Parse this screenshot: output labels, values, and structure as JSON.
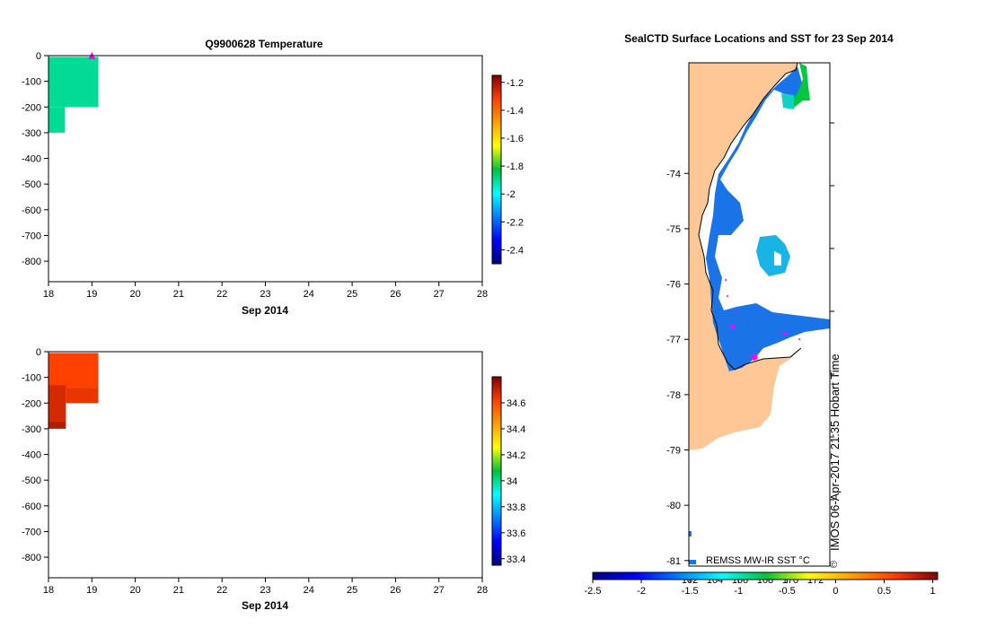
{
  "chart_data": [
    {
      "type": "heatmap",
      "title": "Q9900628  Temperature",
      "xlabel": "Sep 2014",
      "ylabel": "",
      "xlim": [
        18,
        28
      ],
      "ylim": [
        -880,
        0
      ],
      "x_ticks": [
        18,
        19,
        20,
        21,
        22,
        23,
        24,
        25,
        26,
        27,
        28
      ],
      "y_ticks": [
        0,
        -100,
        -200,
        -300,
        -400,
        -500,
        -600,
        -700,
        -800
      ],
      "colorbar": {
        "min": -2.5,
        "max": -1.15,
        "ticks": [
          -1.2,
          -1.4,
          -1.6,
          -1.8,
          -2,
          -2.2,
          -2.4
        ]
      },
      "cells": [
        {
          "x0": 18.0,
          "x1": 19.15,
          "y0": -200,
          "y1": -5,
          "value": -1.9
        },
        {
          "x0": 18.0,
          "x1": 18.38,
          "y0": -300,
          "y1": -200,
          "value": -1.9
        }
      ],
      "marker": {
        "x": 19.0,
        "y": 0,
        "color": "#ff00ff"
      }
    },
    {
      "type": "heatmap",
      "title": "",
      "xlabel": "Sep 2014",
      "ylabel": "",
      "xlim": [
        18,
        28
      ],
      "ylim": [
        -880,
        0
      ],
      "x_ticks": [
        18,
        19,
        20,
        21,
        22,
        23,
        24,
        25,
        26,
        27,
        28
      ],
      "y_ticks": [
        0,
        -100,
        -200,
        -300,
        -400,
        -500,
        -600,
        -700,
        -800
      ],
      "colorbar": {
        "min": 33.35,
        "max": 34.8,
        "ticks": [
          34.6,
          34.4,
          34.2,
          34,
          33.8,
          33.6,
          33.4
        ]
      },
      "cells": [
        {
          "x0": 18.0,
          "x1": 19.15,
          "y0": -140,
          "y1": -5,
          "value": 34.62
        },
        {
          "x0": 18.4,
          "x1": 19.15,
          "y0": -200,
          "y1": -140,
          "value": 34.65
        },
        {
          "x0": 18.0,
          "x1": 18.4,
          "y0": -270,
          "y1": -130,
          "value": 34.68
        },
        {
          "x0": 18.0,
          "x1": 18.4,
          "y0": -300,
          "y1": -270,
          "value": 34.72
        }
      ]
    },
    {
      "type": "map",
      "title": "SealCTD Surface Locations and SST for 23 Sep 2014",
      "ylim": [
        -81.1,
        -72.0
      ],
      "y_ticks": [
        -74,
        -75,
        -76,
        -77,
        -78,
        -79,
        -80,
        -81
      ],
      "x_ticks": [
        162,
        164,
        166,
        168,
        170,
        172
      ],
      "colorbar": {
        "label": "REMSS MW-IR SST °C",
        "min": -2.5,
        "max": 1.05,
        "ticks": [
          "-2.5",
          "-2",
          "-1.5",
          "-1",
          "-0.5",
          "0",
          "0.5",
          "1"
        ]
      },
      "stamp": "IMOS 06-Apr-2017 21:35 Hobart Time",
      "copyright": "©"
    }
  ]
}
